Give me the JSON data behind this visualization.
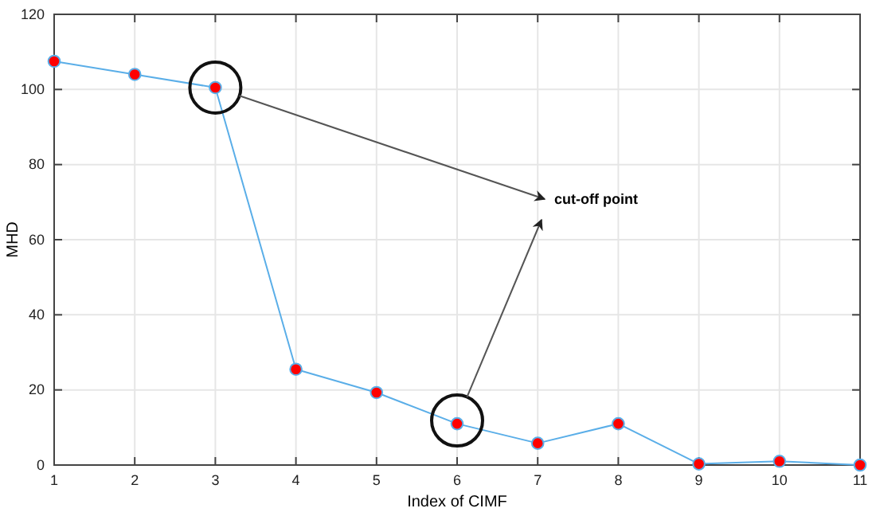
{
  "chart_data": {
    "type": "line",
    "x": [
      1,
      2,
      3,
      4,
      5,
      6,
      7,
      8,
      9,
      10,
      11
    ],
    "series": [
      {
        "color": "#5aaee8",
        "values": [
          107.5,
          104,
          100.5,
          25.5,
          19.3,
          11,
          5.8,
          11,
          0.3,
          1,
          0
        ]
      }
    ],
    "xlabel": "Index of CIMF",
    "ylabel": "MHD",
    "xlim": [
      1,
      11
    ],
    "xticks": [
      1,
      2,
      3,
      4,
      5,
      6,
      7,
      8,
      9,
      10,
      11
    ],
    "ylim": [
      0,
      120
    ],
    "yticks": [
      0,
      20,
      40,
      60,
      80,
      100,
      120
    ],
    "grid": true,
    "marker": "circle",
    "line_style": "solid",
    "annotations": [
      "cut-off point"
    ]
  }
}
